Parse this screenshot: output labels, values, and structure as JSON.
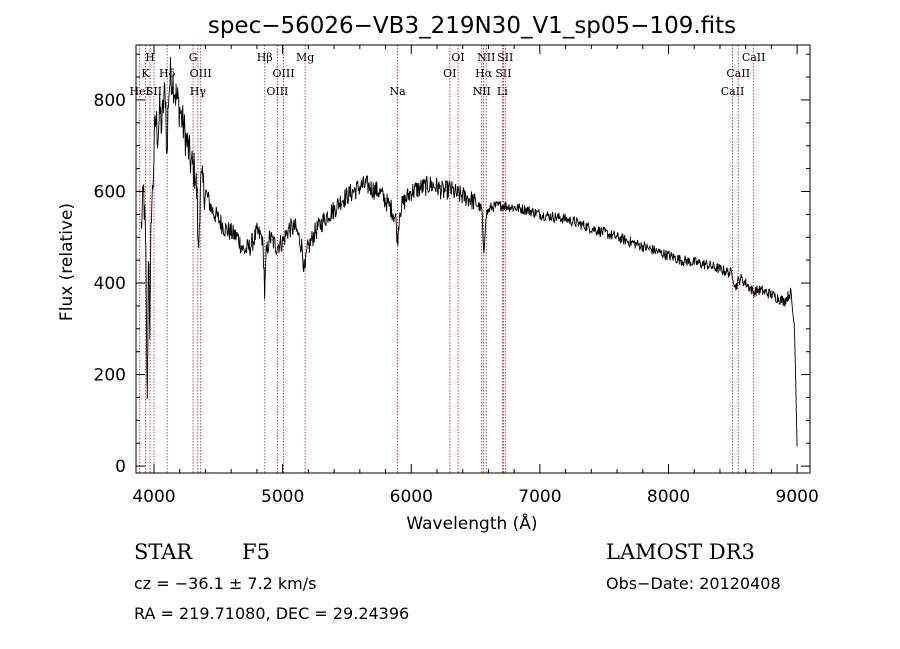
{
  "chart_data": {
    "type": "line",
    "title": "spec−56026−VB3_219N30_V1_sp05−109.fits",
    "xlabel": "Wavelength (Å)",
    "ylabel": "Flux (relative)",
    "xlim": [
      3860,
      9100
    ],
    "ylim": [
      -15,
      920
    ],
    "x_ticks": [
      4000,
      5000,
      6000,
      7000,
      8000,
      9000
    ],
    "y_ticks": [
      0,
      200,
      400,
      600,
      800
    ],
    "line_color": "#000000",
    "marker_color": "#b22222",
    "spectrum_anchors": [
      [
        3900,
        520
      ],
      [
        3920,
        600
      ],
      [
        3935,
        480
      ],
      [
        3948,
        120
      ],
      [
        3958,
        520
      ],
      [
        3968,
        250
      ],
      [
        3978,
        560
      ],
      [
        3990,
        600
      ],
      [
        4002,
        710
      ],
      [
        4015,
        760
      ],
      [
        4030,
        720
      ],
      [
        4045,
        780
      ],
      [
        4060,
        740
      ],
      [
        4075,
        800
      ],
      [
        4090,
        820
      ],
      [
        4101,
        650
      ],
      [
        4110,
        800
      ],
      [
        4130,
        860
      ],
      [
        4150,
        840
      ],
      [
        4170,
        810
      ],
      [
        4200,
        780
      ],
      [
        4230,
        740
      ],
      [
        4260,
        700
      ],
      [
        4290,
        660
      ],
      [
        4320,
        640
      ],
      [
        4335,
        590
      ],
      [
        4345,
        450
      ],
      [
        4360,
        620
      ],
      [
        4400,
        600
      ],
      [
        4450,
        560
      ],
      [
        4500,
        540
      ],
      [
        4550,
        520
      ],
      [
        4600,
        510
      ],
      [
        4650,
        500
      ],
      [
        4700,
        470
      ],
      [
        4750,
        480
      ],
      [
        4800,
        510
      ],
      [
        4840,
        500
      ],
      [
        4855,
        440
      ],
      [
        4861,
        360
      ],
      [
        4870,
        460
      ],
      [
        4900,
        500
      ],
      [
        4950,
        480
      ],
      [
        5000,
        490
      ],
      [
        5050,
        520
      ],
      [
        5100,
        520
      ],
      [
        5150,
        480
      ],
      [
        5172,
        420
      ],
      [
        5190,
        470
      ],
      [
        5250,
        510
      ],
      [
        5300,
        530
      ],
      [
        5350,
        550
      ],
      [
        5400,
        560
      ],
      [
        5450,
        580
      ],
      [
        5500,
        590
      ],
      [
        5550,
        600
      ],
      [
        5600,
        610
      ],
      [
        5650,
        615
      ],
      [
        5700,
        605
      ],
      [
        5750,
        600
      ],
      [
        5800,
        580
      ],
      [
        5850,
        560
      ],
      [
        5880,
        540
      ],
      [
        5893,
        490
      ],
      [
        5910,
        560
      ],
      [
        5950,
        580
      ],
      [
        6000,
        600
      ],
      [
        6050,
        605
      ],
      [
        6100,
        610
      ],
      [
        6150,
        615
      ],
      [
        6200,
        610
      ],
      [
        6250,
        600
      ],
      [
        6300,
        605
      ],
      [
        6350,
        595
      ],
      [
        6400,
        590
      ],
      [
        6450,
        585
      ],
      [
        6500,
        575
      ],
      [
        6550,
        560
      ],
      [
        6563,
        450
      ],
      [
        6580,
        550
      ],
      [
        6620,
        565
      ],
      [
        6700,
        570
      ],
      [
        6800,
        565
      ],
      [
        6900,
        560
      ],
      [
        7000,
        550
      ],
      [
        7100,
        545
      ],
      [
        7200,
        540
      ],
      [
        7300,
        530
      ],
      [
        7400,
        520
      ],
      [
        7500,
        510
      ],
      [
        7600,
        500
      ],
      [
        7700,
        490
      ],
      [
        7800,
        480
      ],
      [
        7900,
        470
      ],
      [
        8000,
        460
      ],
      [
        8100,
        450
      ],
      [
        8200,
        445
      ],
      [
        8300,
        440
      ],
      [
        8400,
        430
      ],
      [
        8498,
        420
      ],
      [
        8520,
        390
      ],
      [
        8542,
        405
      ],
      [
        8560,
        410
      ],
      [
        8600,
        400
      ],
      [
        8662,
        380
      ],
      [
        8700,
        385
      ],
      [
        8800,
        375
      ],
      [
        8900,
        360
      ],
      [
        8950,
        380
      ],
      [
        8980,
        300
      ],
      [
        9000,
        50
      ]
    ],
    "markers": [
      {
        "wavelength": 3889,
        "label": "HeI",
        "row": 3
      },
      {
        "wavelength": 3934,
        "label": "K",
        "row": 2
      },
      {
        "wavelength": 3969,
        "label": "H",
        "row": 1
      },
      {
        "wavelength": 4000,
        "label": "SII",
        "row": 3
      },
      {
        "wavelength": 4102,
        "label": "Hδ",
        "row": 2
      },
      {
        "wavelength": 4304,
        "label": "G",
        "row": 1
      },
      {
        "wavelength": 4341,
        "label": "Hγ",
        "row": 3
      },
      {
        "wavelength": 4363,
        "label": "OIII",
        "row": 2
      },
      {
        "wavelength": 4861,
        "label": "Hβ",
        "row": 1
      },
      {
        "wavelength": 4959,
        "label": "OIII",
        "row": 3
      },
      {
        "wavelength": 5007,
        "label": "OIII",
        "row": 2
      },
      {
        "wavelength": 5175,
        "label": "Mg",
        "row": 1
      },
      {
        "wavelength": 5894,
        "label": "Na",
        "row": 3
      },
      {
        "wavelength": 6300,
        "label": "OI",
        "row": 2
      },
      {
        "wavelength": 6364,
        "label": "OI",
        "row": 1
      },
      {
        "wavelength": 6548,
        "label": "NII",
        "row": 3
      },
      {
        "wavelength": 6563,
        "label": "Hα",
        "row": 2
      },
      {
        "wavelength": 6583,
        "label": "NII",
        "row": 1
      },
      {
        "wavelength": 6708,
        "label": "Li",
        "row": 3
      },
      {
        "wavelength": 6717,
        "label": "SII",
        "row": 2
      },
      {
        "wavelength": 6731,
        "label": "SII",
        "row": 1
      },
      {
        "wavelength": 8498,
        "label": "CaII",
        "row": 3
      },
      {
        "wavelength": 8542,
        "label": "CaII",
        "row": 2
      },
      {
        "wavelength": 8662,
        "label": "CaII",
        "row": 1
      }
    ]
  },
  "info": {
    "object_class": "STAR",
    "subclass": "F5",
    "survey": "LAMOST DR3",
    "redshift": "cz = −36.1 ± 7.2 km/s",
    "obs_date": "Obs−Date: 20120408",
    "coords": "RA = 219.71080, DEC =  29.24396"
  }
}
